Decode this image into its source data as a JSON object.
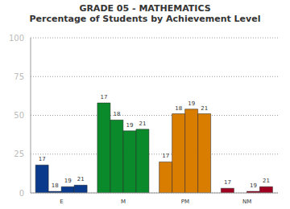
{
  "chart_data": {
    "type": "bar",
    "title": "GRADE 05 - MATHEMATICS",
    "subtitle": "Percentage of Students by Achievement Level",
    "categories": [
      "E",
      "M",
      "PM",
      "NM"
    ],
    "series": [
      {
        "name": "17",
        "values": [
          18,
          58,
          20,
          3
        ],
        "colors": [
          "#0a3a8c",
          "#0a8a2a",
          "#d97d00",
          "#a00020"
        ]
      },
      {
        "name": "18",
        "values": [
          1,
          47,
          51,
          0
        ],
        "colors": [
          "#0a3a8c",
          "#0a8a2a",
          "#d97d00",
          "#a00020"
        ]
      },
      {
        "name": "19",
        "values": [
          4,
          40,
          54,
          1
        ],
        "colors": [
          "#0a3a8c",
          "#0a8a2a",
          "#d97d00",
          "#a00020"
        ]
      },
      {
        "name": "21",
        "values": [
          5,
          41,
          51,
          4
        ],
        "colors": [
          "#0a3a8c",
          "#0a8a2a",
          "#d97d00",
          "#a00020"
        ]
      }
    ],
    "ylim": [
      0,
      100
    ],
    "yticks": [
      0,
      25,
      50,
      75,
      100
    ],
    "grid": true
  }
}
